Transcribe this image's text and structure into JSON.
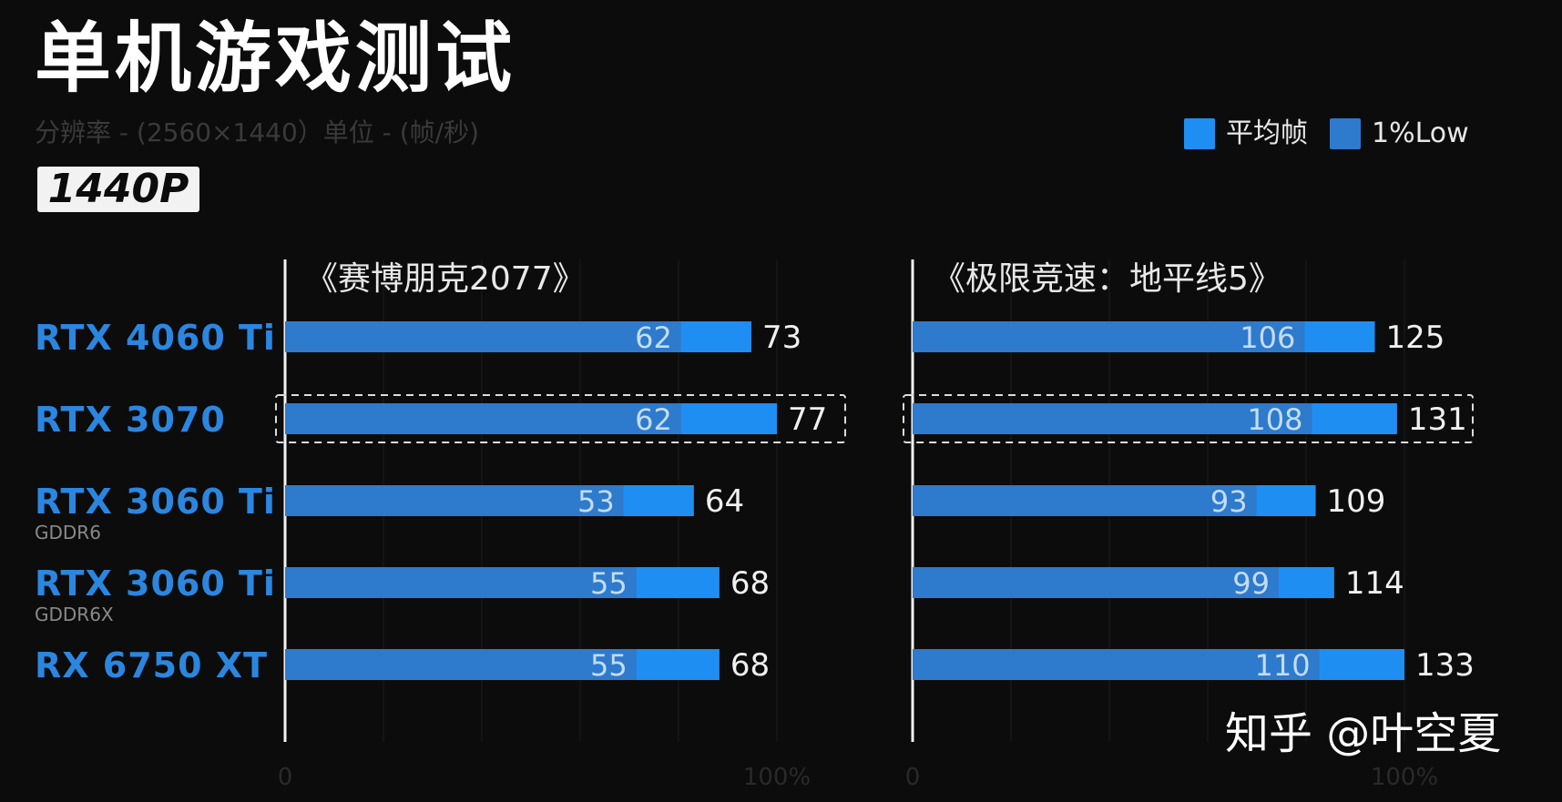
{
  "header": {
    "title": "单机游戏测试",
    "subtitle": "分辨率 - (2560×1440）单位 - (帧/秒)",
    "badge": "1440P"
  },
  "legend": [
    {
      "label": "平均帧",
      "color": "#1f8ef2"
    },
    {
      "label": "1%Low",
      "color": "#2e7acc"
    }
  ],
  "gpus": [
    {
      "name": "RTX 4060 Ti",
      "sub": ""
    },
    {
      "name": "RTX 3070",
      "sub": ""
    },
    {
      "name": "RTX 3060 Ti",
      "sub": "GDDR6"
    },
    {
      "name": "RTX 3060 Ti",
      "sub": "GDDR6X"
    },
    {
      "name": "RX 6750 XT",
      "sub": ""
    }
  ],
  "highlight_index": 1,
  "chart_data": [
    {
      "type": "bar",
      "title": "《赛博朋克2077》",
      "categories": [
        "RTX 4060 Ti",
        "RTX 3070",
        "RTX 3060 Ti GDDR6",
        "RTX 3060 Ti GDDR6X",
        "RX 6750 XT"
      ],
      "series": [
        {
          "name": "平均帧",
          "values": [
            73,
            77,
            64,
            68,
            68
          ]
        },
        {
          "name": "1%Low",
          "values": [
            62,
            62,
            53,
            55,
            55
          ]
        }
      ],
      "xlim": [
        0,
        77
      ],
      "x_tick_labels": [
        "0",
        "100%"
      ]
    },
    {
      "type": "bar",
      "title": "《极限竞速：地平线5》",
      "categories": [
        "RTX 4060 Ti",
        "RTX 3070",
        "RTX 3060 Ti GDDR6",
        "RTX 3060 Ti GDDR6X",
        "RX 6750 XT"
      ],
      "series": [
        {
          "name": "平均帧",
          "values": [
            125,
            131,
            109,
            114,
            133
          ]
        },
        {
          "name": "1%Low",
          "values": [
            106,
            108,
            93,
            99,
            110
          ]
        }
      ],
      "xlim": [
        0,
        133
      ],
      "x_tick_labels": [
        "0",
        "100%"
      ]
    }
  ],
  "watermark": "知乎 @叶空夏"
}
